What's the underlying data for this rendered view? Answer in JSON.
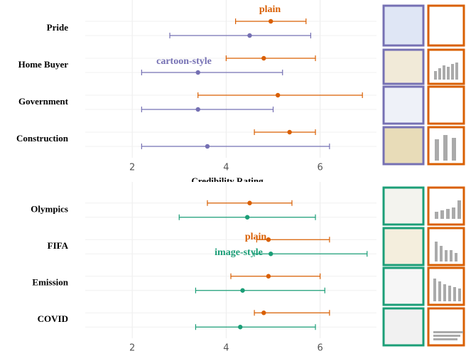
{
  "chart_data": [
    {
      "type": "errorbar",
      "xlabel": "Credibility Rating",
      "categories": [
        "Pride",
        "Home Buyer",
        "Government",
        "Construction"
      ],
      "series": [
        {
          "name": "plain",
          "color": "#d95f02",
          "values": [
            4.95,
            4.8,
            5.1,
            5.35
          ],
          "lower": [
            4.2,
            4.0,
            3.4,
            4.6
          ],
          "upper": [
            5.7,
            5.9,
            6.9,
            5.9
          ]
        },
        {
          "name": "cartoon-style",
          "color": "#7570b3",
          "values": [
            4.5,
            3.4,
            3.4,
            3.6
          ],
          "lower": [
            2.8,
            2.2,
            2.2,
            2.2
          ],
          "upper": [
            5.8,
            5.2,
            5.0,
            6.2
          ]
        }
      ],
      "xlim": [
        1,
        7.2
      ],
      "xticks": [
        2,
        4,
        6
      ],
      "grid": true
    },
    {
      "type": "errorbar",
      "categories": [
        "Olympics",
        "FIFA",
        "Emission",
        "COVID"
      ],
      "series": [
        {
          "name": "plain",
          "color": "#d95f02",
          "values": [
            4.5,
            4.9,
            4.9,
            4.8
          ],
          "lower": [
            3.6,
            4.65,
            4.1,
            4.6
          ],
          "upper": [
            5.4,
            6.2,
            6.0,
            6.2
          ]
        },
        {
          "name": "image-style",
          "color": "#1b9e77",
          "values": [
            4.45,
            4.95,
            4.35,
            4.3
          ],
          "lower": [
            3.0,
            4.6,
            3.35,
            3.35
          ],
          "upper": [
            5.9,
            7.0,
            6.1,
            5.9
          ]
        }
      ],
      "xlim": [
        1,
        7.2
      ],
      "xticks": [
        2,
        4,
        6
      ],
      "grid": true
    }
  ]
}
